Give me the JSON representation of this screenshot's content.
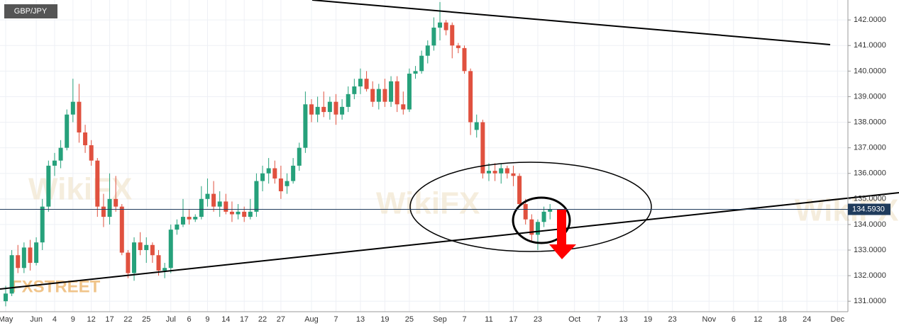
{
  "chart_data": {
    "type": "candlestick",
    "title": "GBP/JPY",
    "logo": "FXSTREET",
    "watermark": "WikiFX",
    "categories": [
      "May",
      null,
      null,
      null,
      null,
      "Jun",
      null,
      null,
      "4",
      null,
      null,
      "9",
      null,
      null,
      "12",
      null,
      null,
      "17",
      null,
      null,
      "22",
      null,
      null,
      "25",
      null,
      null,
      null,
      "Jul",
      null,
      null,
      "6",
      null,
      null,
      "9",
      null,
      null,
      "14",
      null,
      null,
      "17",
      null,
      null,
      "22",
      null,
      null,
      "27",
      null,
      null,
      null,
      null,
      "Aug",
      null,
      null,
      null,
      "7",
      null,
      null,
      null,
      "13",
      null,
      null,
      null,
      "19",
      null,
      null,
      null,
      "25",
      null,
      null,
      null,
      null,
      "Sep",
      null,
      null,
      null,
      "7",
      null,
      null,
      null,
      "11",
      null,
      null,
      null,
      "17",
      null,
      null,
      null,
      "23",
      null,
      null,
      null,
      null,
      null,
      "Oct",
      null,
      null,
      null,
      "7",
      null,
      null,
      null,
      "13",
      null,
      null,
      null,
      "19",
      null,
      null,
      null,
      "23",
      null,
      null,
      null,
      null,
      null,
      "Nov",
      null,
      null,
      null,
      "6",
      null,
      null,
      null,
      "12",
      null,
      null,
      null,
      "18",
      null,
      null,
      null,
      "24",
      null,
      null,
      null,
      null,
      "Dec"
    ],
    "open": [
      131.0,
      131.3,
      132.8,
      132.3,
      133.1,
      132.5,
      133.3,
      134.7,
      136.3,
      136.5,
      137.0,
      138.3,
      138.8,
      137.6,
      137.1,
      136.5,
      134.7,
      134.3,
      135.0,
      134.7,
      132.9,
      132.1,
      133.3,
      133.0,
      133.2,
      132.8,
      132.2,
      132.3,
      133.8,
      134.0,
      134.3,
      134.2,
      134.3,
      135.0,
      135.2,
      134.7,
      134.9,
      134.5,
      134.4,
      134.5,
      134.3,
      134.5,
      135.7,
      136.0,
      136.2,
      135.8,
      135.5,
      135.7,
      136.3,
      137.0,
      138.7,
      138.3,
      138.6,
      138.4,
      138.8,
      138.3,
      138.6,
      139.1,
      139.4,
      139.7,
      139.3,
      138.8,
      139.3,
      138.8,
      139.6,
      138.7,
      138.5,
      139.9,
      140.0,
      140.6,
      141.0,
      141.7,
      141.9,
      141.8,
      141.0,
      140.9,
      140.0,
      137.7,
      138.0,
      136.0,
      136.1,
      136.0,
      136.2,
      136.0,
      135.9,
      134.8,
      134.2,
      133.6,
      134.1,
      134.5,
      null,
      null,
      null,
      null,
      null,
      null,
      null,
      null,
      null,
      null,
      null,
      null,
      null,
      null,
      null,
      null,
      null,
      null,
      null,
      null,
      null,
      null,
      null,
      null,
      null,
      null,
      null,
      null,
      null,
      null,
      null,
      null,
      null,
      null,
      null,
      null,
      null,
      null,
      null,
      null,
      null,
      null,
      null,
      null,
      null,
      null,
      null
    ],
    "high": [
      131.6,
      133.0,
      133.2,
      133.3,
      133.4,
      133.5,
      135.0,
      136.5,
      136.8,
      137.3,
      138.5,
      139.7,
      139.5,
      137.9,
      137.3,
      136.6,
      135.2,
      136.0,
      135.9,
      134.8,
      133.0,
      133.5,
      133.7,
      133.5,
      133.3,
      133.0,
      132.5,
      134.0,
      134.2,
      135.0,
      134.6,
      134.4,
      135.5,
      135.8,
      135.7,
      135.3,
      135.2,
      134.9,
      134.8,
      134.7,
      135.0,
      136.0,
      136.3,
      136.6,
      136.5,
      136.3,
      136.0,
      136.6,
      137.2,
      139.2,
      138.9,
      139.0,
      139.2,
      139.0,
      139.1,
      138.9,
      139.4,
      139.7,
      140.1,
      140.0,
      139.6,
      139.5,
      139.7,
      139.8,
      139.8,
      139.2,
      140.1,
      140.2,
      140.8,
      141.2,
      142.1,
      142.7,
      142.0,
      141.9,
      141.1,
      141.0,
      140.1,
      138.3,
      138.1,
      136.4,
      136.4,
      136.4,
      136.3,
      136.3,
      136.0,
      135.0,
      134.4,
      134.2,
      134.7,
      134.8,
      null,
      null,
      null,
      null,
      null,
      null,
      null,
      null,
      null,
      null,
      null,
      null,
      null,
      null,
      null,
      null,
      null,
      null,
      null,
      null,
      null,
      null,
      null,
      null,
      null,
      null,
      null,
      null,
      null,
      null,
      null,
      null,
      null,
      null,
      null,
      null,
      null,
      null,
      null,
      null,
      null,
      null,
      null,
      null,
      null,
      null,
      null
    ],
    "low": [
      130.8,
      131.2,
      132.1,
      132.1,
      132.2,
      132.4,
      133.0,
      134.5,
      135.9,
      136.2,
      136.9,
      138.0,
      137.2,
      136.8,
      136.3,
      134.3,
      133.9,
      134.0,
      134.5,
      132.8,
      131.9,
      131.8,
      132.8,
      132.5,
      132.5,
      132.0,
      131.9,
      132.1,
      133.6,
      133.9,
      134.0,
      134.1,
      134.2,
      134.7,
      134.5,
      134.3,
      134.4,
      134.1,
      134.2,
      134.1,
      134.2,
      134.3,
      135.3,
      135.6,
      135.6,
      135.0,
      135.2,
      135.6,
      136.1,
      136.8,
      138.0,
      138.0,
      138.2,
      138.1,
      137.9,
      138.1,
      138.4,
      138.9,
      139.1,
      139.2,
      138.6,
      138.5,
      138.6,
      138.6,
      138.4,
      138.3,
      138.4,
      139.7,
      139.9,
      140.3,
      140.8,
      141.2,
      141.4,
      140.5,
      140.7,
      139.9,
      137.5,
      137.4,
      135.8,
      135.7,
      135.7,
      135.6,
      135.8,
      135.5,
      134.7,
      134.0,
      133.3,
      133.0,
      133.9,
      134.2,
      null,
      null,
      null,
      null,
      null,
      null,
      null,
      null,
      null,
      null,
      null,
      null,
      null,
      null,
      null,
      null,
      null,
      null,
      null,
      null,
      null,
      null,
      null,
      null,
      null,
      null,
      null,
      null,
      null,
      null,
      null,
      null,
      null,
      null,
      null,
      null,
      null,
      null,
      null,
      null,
      null,
      null,
      null,
      null,
      null,
      null,
      null
    ],
    "close": [
      131.3,
      132.8,
      132.3,
      133.1,
      132.5,
      133.3,
      134.7,
      136.3,
      136.5,
      137.0,
      138.3,
      138.8,
      137.6,
      137.1,
      136.5,
      134.7,
      134.3,
      135.0,
      134.7,
      132.9,
      132.1,
      133.3,
      133.0,
      133.2,
      132.8,
      132.2,
      132.3,
      133.8,
      134.0,
      134.3,
      134.2,
      134.3,
      135.0,
      135.2,
      134.7,
      134.9,
      134.5,
      134.4,
      134.5,
      134.3,
      134.5,
      135.7,
      136.0,
      136.2,
      135.8,
      135.3,
      135.7,
      136.3,
      137.0,
      138.7,
      138.3,
      138.6,
      138.4,
      138.8,
      138.3,
      138.6,
      139.1,
      139.4,
      139.7,
      139.3,
      138.8,
      139.3,
      138.8,
      139.6,
      138.7,
      138.5,
      139.9,
      140.0,
      140.6,
      141.0,
      141.7,
      141.9,
      141.6,
      141.0,
      140.9,
      140.0,
      138.0,
      138.0,
      136.0,
      136.1,
      136.0,
      136.2,
      136.0,
      135.9,
      134.8,
      134.2,
      133.6,
      134.1,
      134.5,
      134.593,
      null,
      null,
      null,
      null,
      null,
      null,
      null,
      null,
      null,
      null,
      null,
      null,
      null,
      null,
      null,
      null,
      null,
      null,
      null,
      null,
      null,
      null,
      null,
      null,
      null,
      null,
      null,
      null,
      null,
      null,
      null,
      null,
      null,
      null,
      null,
      null,
      null,
      null,
      null,
      null,
      null,
      null,
      null,
      null,
      null,
      null,
      null
    ],
    "up_color": "#26a17b",
    "down_color": "#e0513f",
    "last_price": {
      "value": 134.593,
      "label": "134.5930"
    },
    "ylim": [
      130.59,
      142.78
    ],
    "yticks": [
      {
        "value": 131,
        "label": "131.0000"
      },
      {
        "value": 132,
        "label": "132.0000"
      },
      {
        "value": 133,
        "label": "133.0000"
      },
      {
        "value": 134,
        "label": "134.0000"
      },
      {
        "value": 135,
        "label": "135.0000"
      },
      {
        "value": 136,
        "label": "136.0000"
      },
      {
        "value": 137,
        "label": "137.0000"
      },
      {
        "value": 138,
        "label": "138.0000"
      },
      {
        "value": 139,
        "label": "139.0000"
      },
      {
        "value": 140,
        "label": "140.0000"
      },
      {
        "value": 141,
        "label": "141.0000"
      },
      {
        "value": 142,
        "label": "142.0000"
      }
    ],
    "grid": true
  }
}
